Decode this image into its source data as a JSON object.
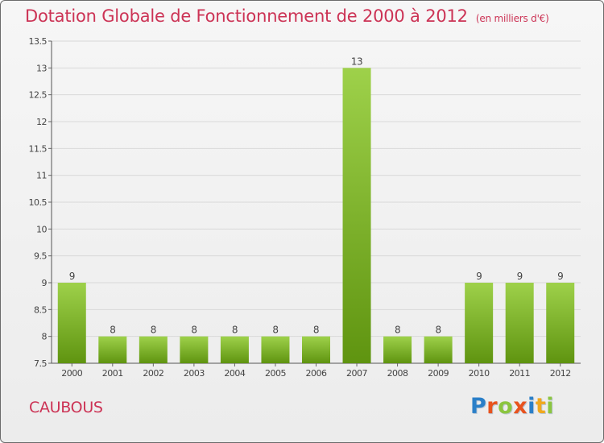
{
  "header": {
    "title": "Dotation Globale de Fonctionnement de 2000 à 2012",
    "subtitle": "(en milliers d'€)"
  },
  "footer": {
    "commune": "CAUBOUS",
    "brand": [
      "P",
      "r",
      "o",
      "x",
      "i",
      "t",
      "i"
    ],
    "brand_colors": [
      "#2a7fc8",
      "#e8531e",
      "#8bc53f",
      "#e8531e",
      "#2a7fc8",
      "#f0a81e",
      "#8bc53f"
    ]
  },
  "colors": {
    "bar_light": "#9ed14a",
    "bar_dark": "#5f9410",
    "title": "#cc3355",
    "grid": "#d8d8d8"
  },
  "chart_data": {
    "type": "bar",
    "title": "Dotation Globale de Fonctionnement de 2000 à 2012",
    "subtitle": "(en milliers d'€)",
    "categories": [
      "2000",
      "2001",
      "2002",
      "2003",
      "2004",
      "2005",
      "2006",
      "2007",
      "2008",
      "2009",
      "2010",
      "2011",
      "2012"
    ],
    "values": [
      9,
      8,
      8,
      8,
      8,
      8,
      8,
      13,
      8,
      8,
      9,
      9,
      9
    ],
    "data_labels": [
      "9",
      "8",
      "8",
      "8",
      "8",
      "8",
      "8",
      "13",
      "8",
      "8",
      "9",
      "9",
      "9"
    ],
    "ylim": [
      7.5,
      13.5
    ],
    "yticks": [
      7.5,
      8,
      8.5,
      9,
      9.5,
      10,
      10.5,
      11,
      11.5,
      12,
      12.5,
      13,
      13.5
    ],
    "ytick_labels": [
      "7.5",
      "8",
      "8.5",
      "9",
      "9.5",
      "10",
      "10.5",
      "11",
      "11.5",
      "12",
      "12.5",
      "13",
      "13.5"
    ],
    "grid": true,
    "legend": false,
    "xlabel": "",
    "ylabel": ""
  }
}
